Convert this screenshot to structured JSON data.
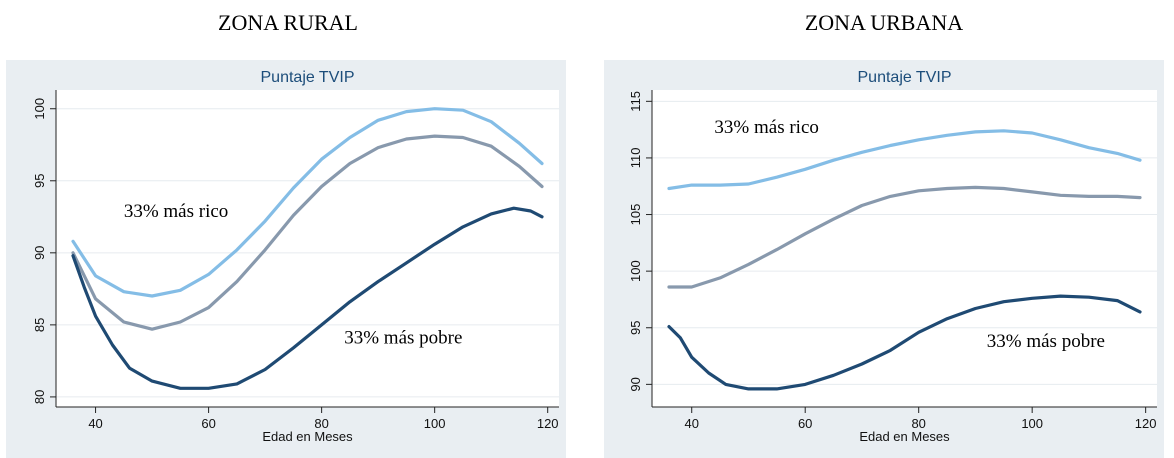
{
  "header": {
    "left_title": "ZONA RURAL",
    "right_title": "ZONA URBANA"
  },
  "chart_data": [
    {
      "type": "line",
      "title": "Puntaje TVIP",
      "xlabel": "Edad en Meses",
      "ylabel": "",
      "xlim": [
        33,
        122
      ],
      "ylim": [
        79.3,
        101.3
      ],
      "xticks": [
        40,
        60,
        80,
        100,
        120
      ],
      "yticks": [
        80,
        85,
        90,
        95,
        100
      ],
      "grid": true,
      "annotations": [
        {
          "text": "33% más rico",
          "x": 45,
          "y": 92.5
        },
        {
          "text": "33% más pobre",
          "x": 84,
          "y": 83.7
        }
      ],
      "series": [
        {
          "color": "#84bde6",
          "x": [
            36,
            40,
            45,
            50,
            55,
            60,
            65,
            70,
            75,
            80,
            85,
            90,
            95,
            100,
            105,
            110,
            115,
            119
          ],
          "y": [
            90.8,
            88.4,
            87.3,
            87.0,
            87.4,
            88.5,
            90.2,
            92.2,
            94.5,
            96.5,
            98.0,
            99.2,
            99.8,
            100.0,
            99.9,
            99.1,
            97.6,
            96.2
          ]
        },
        {
          "color": "#8899ad",
          "x": [
            36,
            40,
            45,
            50,
            55,
            60,
            65,
            70,
            75,
            80,
            85,
            90,
            95,
            100,
            105,
            110,
            115,
            119
          ],
          "y": [
            90.0,
            86.8,
            85.2,
            84.7,
            85.2,
            86.2,
            88.0,
            90.2,
            92.6,
            94.6,
            96.2,
            97.3,
            97.9,
            98.1,
            98.0,
            97.4,
            96.0,
            94.6
          ]
        },
        {
          "color": "#1f4a73",
          "x": [
            36,
            38,
            40,
            43,
            46,
            50,
            55,
            60,
            65,
            70,
            75,
            80,
            85,
            90,
            95,
            100,
            105,
            110,
            114,
            117,
            119
          ],
          "y": [
            89.8,
            87.6,
            85.6,
            83.6,
            82.0,
            81.1,
            80.6,
            80.6,
            80.9,
            81.9,
            83.4,
            85.0,
            86.6,
            88.0,
            89.3,
            90.6,
            91.8,
            92.7,
            93.1,
            92.9,
            92.5
          ]
        }
      ]
    },
    {
      "type": "line",
      "title": "Puntaje TVIP",
      "xlabel": "Edad en Meses",
      "ylabel": "",
      "xlim": [
        33,
        122
      ],
      "ylim": [
        88.0,
        116.0
      ],
      "xticks": [
        40,
        60,
        80,
        100,
        120
      ],
      "yticks": [
        90,
        95,
        100,
        105,
        110,
        115
      ],
      "grid": true,
      "annotations": [
        {
          "text": "33% más rico",
          "x": 44,
          "y": 112.2
        },
        {
          "text": "33% más pobre",
          "x": 92,
          "y": 93.3
        }
      ],
      "series": [
        {
          "color": "#84bde6",
          "x": [
            36,
            40,
            45,
            50,
            55,
            60,
            65,
            70,
            75,
            80,
            85,
            90,
            95,
            100,
            105,
            110,
            115,
            119
          ],
          "y": [
            107.3,
            107.6,
            107.6,
            107.7,
            108.3,
            109.0,
            109.8,
            110.5,
            111.1,
            111.6,
            112.0,
            112.3,
            112.4,
            112.2,
            111.6,
            110.9,
            110.4,
            109.8
          ]
        },
        {
          "color": "#8899ad",
          "x": [
            36,
            40,
            45,
            50,
            55,
            60,
            65,
            70,
            75,
            80,
            85,
            90,
            95,
            100,
            105,
            110,
            115,
            119
          ],
          "y": [
            98.6,
            98.6,
            99.4,
            100.6,
            101.9,
            103.3,
            104.6,
            105.8,
            106.6,
            107.1,
            107.3,
            107.4,
            107.3,
            107.0,
            106.7,
            106.6,
            106.6,
            106.5
          ]
        },
        {
          "color": "#1f4a73",
          "x": [
            36,
            38,
            40,
            43,
            46,
            50,
            55,
            60,
            65,
            70,
            75,
            80,
            85,
            90,
            95,
            100,
            105,
            110,
            115,
            119
          ],
          "y": [
            95.1,
            94.1,
            92.4,
            91.0,
            90.0,
            89.6,
            89.6,
            90.0,
            90.8,
            91.8,
            93.0,
            94.6,
            95.8,
            96.7,
            97.3,
            97.6,
            97.8,
            97.7,
            97.4,
            96.4
          ]
        }
      ]
    }
  ]
}
